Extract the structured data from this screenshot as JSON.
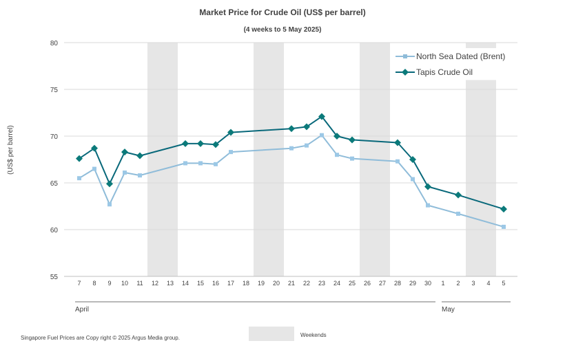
{
  "chart_data": {
    "type": "line",
    "title": "Market Price for Crude  Oil (US$ per barrel)",
    "subtitle": "(4 weeks to 5 May 2025)",
    "ylabel": "(US$ per barrel)",
    "ylim": [
      55,
      80
    ],
    "yticks": [
      "55",
      "60",
      "65",
      "70",
      "75",
      "80"
    ],
    "grid": true,
    "legend_position": "top-right",
    "categories": [
      "7",
      "8",
      "9",
      "10",
      "11",
      "12",
      "13",
      "14",
      "15",
      "16",
      "17",
      "18",
      "19",
      "20",
      "21",
      "22",
      "23",
      "24",
      "25",
      "26",
      "27",
      "28",
      "29",
      "30",
      "1",
      "2",
      "3",
      "4",
      "5"
    ],
    "month_labels": [
      "April",
      "May"
    ],
    "weekend_category_pairs": [
      [
        "12",
        "13"
      ],
      [
        "19",
        "20"
      ],
      [
        "26",
        "27"
      ],
      [
        "3",
        "4"
      ]
    ],
    "series": [
      {
        "name": "North Sea Dated (Brent)",
        "color": "#8fbcd9",
        "marker": "square",
        "values": [
          65.5,
          66.5,
          62.7,
          66.1,
          65.8,
          null,
          null,
          67.1,
          67.1,
          67.0,
          68.3,
          null,
          null,
          null,
          68.7,
          69.0,
          70.1,
          68.0,
          67.6,
          null,
          null,
          67.3,
          65.4,
          62.6,
          null,
          61.7,
          null,
          null,
          60.3
        ]
      },
      {
        "name": "Tapis Crude Oil",
        "color": "#08687a",
        "marker": "diamond",
        "values": [
          67.6,
          68.7,
          64.9,
          68.3,
          67.9,
          null,
          null,
          69.2,
          69.2,
          69.1,
          70.4,
          null,
          null,
          null,
          70.8,
          71.0,
          72.1,
          70.0,
          69.6,
          null,
          null,
          69.3,
          67.5,
          64.6,
          null,
          63.7,
          null,
          null,
          62.2
        ]
      }
    ],
    "weekend_legend_label": "Weekends",
    "weekend_color": "#e6e6e6"
  },
  "footer": {
    "source": "Singapore  Fuel Prices are  Copy right © 2025 Argus Media  group."
  }
}
